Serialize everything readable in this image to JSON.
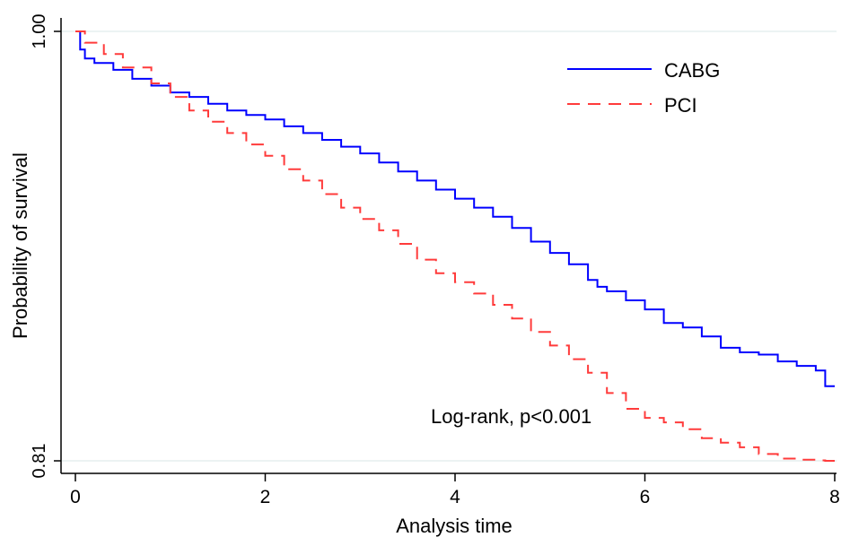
{
  "chart_data": {
    "type": "line",
    "title": "",
    "xlabel": "Analysis time",
    "ylabel": "Probability of survival",
    "xlim": [
      0,
      8
    ],
    "ylim": [
      0.81,
      1.0
    ],
    "x_ticks": [
      {
        "value": 0,
        "label": "0"
      },
      {
        "value": 2,
        "label": "2"
      },
      {
        "value": 4,
        "label": "4"
      },
      {
        "value": 6,
        "label": "6"
      },
      {
        "value": 8,
        "label": "8"
      }
    ],
    "y_ticks": [
      {
        "value": 1.0,
        "label": "1.00"
      },
      {
        "value": 0.81,
        "label": "0.81"
      }
    ],
    "grid": "horizontal at y ticks",
    "legend_position": "top-right",
    "annotation": "Log-rank, p<0.001",
    "colors": {
      "CABG": "#0000ff",
      "PCI": "#ff3b3b",
      "grid": "#e6efef"
    },
    "series": [
      {
        "name": "CABG",
        "style": "solid",
        "step": true,
        "x": [
          0,
          0.05,
          0.1,
          0.2,
          0.4,
          0.6,
          0.8,
          1.0,
          1.2,
          1.4,
          1.6,
          1.8,
          2.0,
          2.2,
          2.4,
          2.6,
          2.8,
          3.0,
          3.2,
          3.4,
          3.6,
          3.8,
          4.0,
          4.2,
          4.4,
          4.6,
          4.8,
          5.0,
          5.2,
          5.4,
          5.5,
          5.6,
          5.8,
          6.0,
          6.2,
          6.4,
          6.6,
          6.8,
          7.0,
          7.2,
          7.4,
          7.6,
          7.8,
          7.9,
          8.0
        ],
        "values": [
          1.0,
          0.992,
          0.988,
          0.986,
          0.983,
          0.979,
          0.976,
          0.973,
          0.971,
          0.968,
          0.965,
          0.963,
          0.961,
          0.958,
          0.955,
          0.952,
          0.949,
          0.946,
          0.942,
          0.938,
          0.934,
          0.93,
          0.926,
          0.922,
          0.918,
          0.913,
          0.907,
          0.902,
          0.897,
          0.89,
          0.887,
          0.885,
          0.881,
          0.877,
          0.871,
          0.869,
          0.865,
          0.86,
          0.858,
          0.857,
          0.854,
          0.852,
          0.85,
          0.843,
          0.843
        ]
      },
      {
        "name": "PCI",
        "style": "dashed",
        "step": true,
        "x": [
          0,
          0.1,
          0.3,
          0.5,
          0.8,
          1.0,
          1.2,
          1.4,
          1.6,
          1.8,
          2.0,
          2.2,
          2.4,
          2.6,
          2.8,
          3.0,
          3.2,
          3.4,
          3.6,
          3.8,
          4.0,
          4.2,
          4.4,
          4.6,
          4.8,
          5.0,
          5.2,
          5.4,
          5.6,
          5.8,
          6.0,
          6.2,
          6.4,
          6.6,
          6.8,
          7.0,
          7.2,
          7.4,
          7.6,
          7.8,
          7.9,
          8.0
        ],
        "values": [
          1.0,
          0.995,
          0.99,
          0.984,
          0.977,
          0.971,
          0.965,
          0.96,
          0.955,
          0.95,
          0.945,
          0.939,
          0.934,
          0.928,
          0.922,
          0.917,
          0.912,
          0.906,
          0.899,
          0.893,
          0.889,
          0.884,
          0.879,
          0.873,
          0.867,
          0.861,
          0.855,
          0.849,
          0.84,
          0.833,
          0.829,
          0.827,
          0.824,
          0.82,
          0.818,
          0.816,
          0.813,
          0.811,
          0.8105,
          0.8102,
          0.81,
          0.81
        ]
      }
    ]
  }
}
